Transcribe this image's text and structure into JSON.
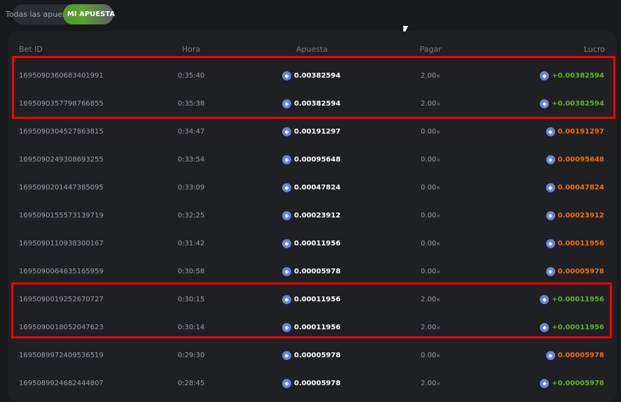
{
  "tabs": {
    "all": "Todas las apuestas",
    "mine": "MI APUESTA"
  },
  "headers": {
    "id": "Bet ID",
    "time": "Hora",
    "bet": "Apuesta",
    "payout": "Pagar",
    "profit": "Lucro"
  },
  "coin_icon": "ethereum-icon",
  "colors": {
    "win": "#5fb420",
    "loss": "#f06e0c",
    "highlight": "#ff0000"
  },
  "rows": [
    {
      "id": "1695090360683401991",
      "time": "0:35:40",
      "bet": "0.00382594",
      "payout": "2.00",
      "profit": "+0.00382594",
      "win": true
    },
    {
      "id": "1695090357798766855",
      "time": "0:35:38",
      "bet": "0.00382594",
      "payout": "2.00",
      "profit": "+0.00382594",
      "win": true
    },
    {
      "id": "1695090304527863815",
      "time": "0:34:47",
      "bet": "0.00191297",
      "payout": "0.00",
      "profit": "0.00191297",
      "win": false
    },
    {
      "id": "1695090249308693255",
      "time": "0:33:54",
      "bet": "0.00095648",
      "payout": "0.00",
      "profit": "0.00095648",
      "win": false
    },
    {
      "id": "1695090201447385095",
      "time": "0:33:09",
      "bet": "0.00047824",
      "payout": "0.00",
      "profit": "0.00047824",
      "win": false
    },
    {
      "id": "1695090155573139719",
      "time": "0:32:25",
      "bet": "0.00023912",
      "payout": "0.00",
      "profit": "0.00023912",
      "win": false
    },
    {
      "id": "1695090110938300167",
      "time": "0:31:42",
      "bet": "0.00011956",
      "payout": "0.00",
      "profit": "0.00011956",
      "win": false
    },
    {
      "id": "1695090064635165959",
      "time": "0:30:58",
      "bet": "0.00005978",
      "payout": "0.00",
      "profit": "0.00005978",
      "win": false
    },
    {
      "id": "1695090019252670727",
      "time": "0:30:15",
      "bet": "0.00011956",
      "payout": "2.00",
      "profit": "+0.00011956",
      "win": true
    },
    {
      "id": "1695090018052047623",
      "time": "0:30:14",
      "bet": "0.00011956",
      "payout": "2.00",
      "profit": "+0.00011956",
      "win": true
    },
    {
      "id": "1695089972409536519",
      "time": "0:29:30",
      "bet": "0.00005978",
      "payout": "0.00",
      "profit": "0.00005978",
      "win": false
    },
    {
      "id": "1695089924682444807",
      "time": "0:28:45",
      "bet": "0.00005978",
      "payout": "2.00",
      "profit": "+0.00005978",
      "win": true
    }
  ],
  "multiplier_suffix": "×"
}
